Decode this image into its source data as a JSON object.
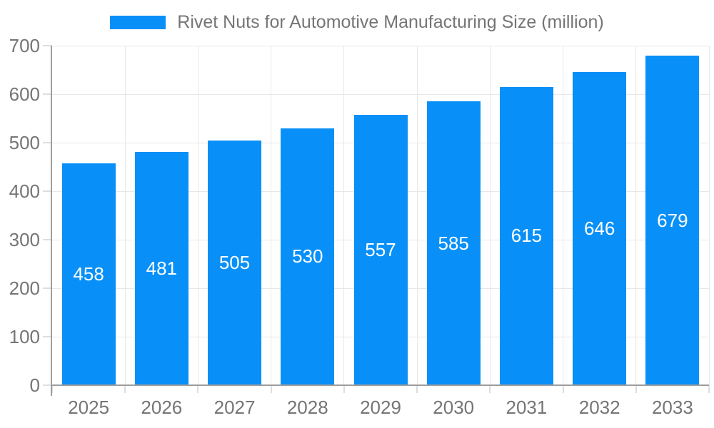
{
  "legend": {
    "items": [
      {
        "label": "Rivet Nuts for Automotive Manufacturing Size (million)",
        "color": "#0890f8"
      }
    ],
    "position": "top"
  },
  "chart_data": {
    "type": "bar",
    "title": "Rivet Nuts for Automotive Manufacturing Size (million)",
    "categories": [
      "2025",
      "2026",
      "2027",
      "2028",
      "2029",
      "2030",
      "2031",
      "2032",
      "2033"
    ],
    "values": [
      458,
      481,
      505,
      530,
      557,
      585,
      615,
      646,
      679
    ],
    "xlabel": "",
    "ylabel": "",
    "ylim": [
      0,
      700
    ],
    "ytick_step": 100,
    "yticks": [
      0,
      100,
      200,
      300,
      400,
      500,
      600,
      700
    ],
    "grid": true,
    "legend_position": "top",
    "bar_label_position": "center",
    "colors": {
      "bar": "#0890f8",
      "bar_label": "#ffffff",
      "axis_text": "#757575",
      "axis_line": "#9e9e9e",
      "gridline": "#e8e8e8",
      "tick": "#dedede",
      "background": "#ffffff"
    }
  }
}
